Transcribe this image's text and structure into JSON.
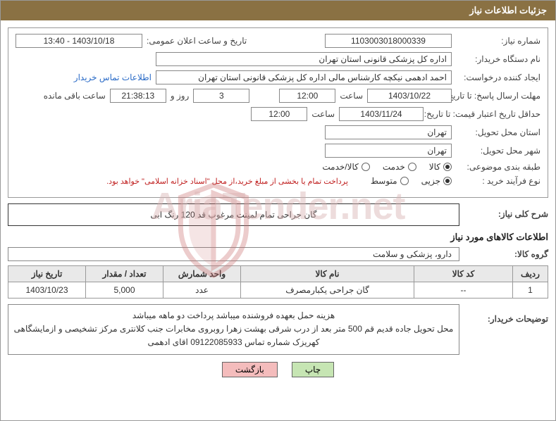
{
  "header": {
    "title": "جزئیات اطلاعات نیاز"
  },
  "labels": {
    "need_no": "شماره نیاز:",
    "announce_date": "تاریخ و ساعت اعلان عمومی:",
    "buyer_org": "نام دستگاه خریدار:",
    "requester": "ایجاد کننده درخواست:",
    "contact_link": "اطلاعات تماس خریدار",
    "reply_deadline": "مهلت ارسال پاسخ: تا تاریخ:",
    "hour": "ساعت",
    "days_and": "روز و",
    "hours_left": "ساعت باقی مانده",
    "price_validity": "حداقل تاریخ اعتبار قیمت: تا تاریخ:",
    "delivery_province": "استان محل تحویل:",
    "delivery_city": "شهر محل تحویل:",
    "subject_cat": "طبقه بندی موضوعی:",
    "purchase_type": "نوع فرآیند خرید :",
    "payment_note": "پرداخت تمام یا بخشی از مبلغ خرید،از محل \"اسناد خزانه اسلامی\" خواهد بود.",
    "overall_desc": "شرح کلی نیاز:",
    "goods_info": "اطلاعات کالاهای مورد نیاز",
    "goods_group": "گروه کالا:",
    "buyer_notes": "توضیحات خریدار:"
  },
  "form": {
    "need_no": "1103003018000339",
    "announce_date": "1403/10/18 - 13:40",
    "buyer_org": "اداره کل پزشکی قانونی استان تهران",
    "requester": "احمد ادهمی نیکچه کارشناس مالی اداره کل پزشکی قانونی استان تهران",
    "reply_date": "1403/10/22",
    "reply_hour": "12:00",
    "days_left": "3",
    "time_left": "21:38:13",
    "price_date": "1403/11/24",
    "price_hour": "12:00",
    "province": "تهران",
    "city": "تهران"
  },
  "subject_cat": {
    "options": [
      "کالا",
      "خدمت",
      "کالا/خدمت"
    ],
    "selected": 0
  },
  "purchase_type": {
    "options": [
      "جزیی",
      "متوسط"
    ],
    "selected": 0
  },
  "overall_desc": "گان جراحی تمام لمینت مرغوب قد 120 رنگ ابی",
  "goods_group": "دارو، پزشکی و سلامت",
  "table": {
    "headers": [
      "ردیف",
      "کد کالا",
      "نام کالا",
      "واحد شمارش",
      "تعداد / مقدار",
      "تاریخ نیاز"
    ],
    "rows": [
      [
        "1",
        "--",
        "گان جراحی یکبارمصرف",
        "عدد",
        "5,000",
        "1403/10/23"
      ]
    ],
    "col_widths": [
      "50px",
      "140px",
      "auto",
      "110px",
      "110px",
      "110px"
    ]
  },
  "buyer_notes_text": "هزینه حمل بعهده فروشنده میباشد پرداخت دو ماهه میباشد\nمحل تحویل جاده قدیم قم 500 متر بعد از درب شرقی بهشت زهرا روبروی مخابرات جنب کلانتری مرکز تشخیصی و ازمایشگاهی کهریزک شماره تماس 09122085933 اقای ادهمی",
  "buttons": {
    "print": "چاپ",
    "back": "بازگشت"
  },
  "watermark": "AriaTender.net",
  "colors": {
    "header_bg": "#8a7143",
    "header_fg": "#ffffff",
    "border": "#999999",
    "link": "#2a6bc7",
    "note_red": "#c02020",
    "th_bg": "#e9e9e9",
    "btn_print": "#c6e5b3",
    "btn_back": "#f4bcbc",
    "watermark": "#d9b3b3"
  }
}
